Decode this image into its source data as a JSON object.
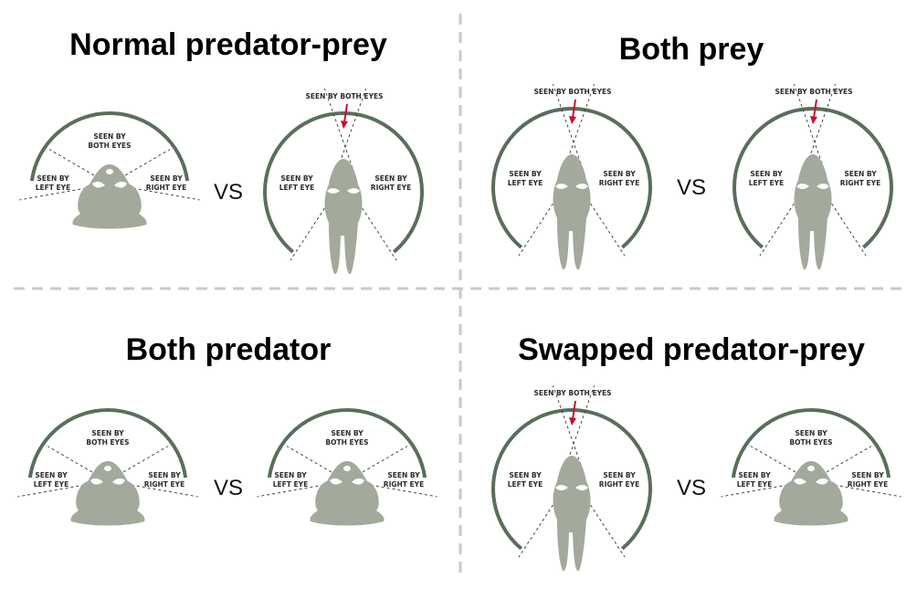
{
  "panels": [
    {
      "title": "Normal predator-prey",
      "vs": "VS",
      "left": {
        "kind": "predator",
        "labels": {
          "both": [
            "SEEN BY",
            "BOTH EYES"
          ],
          "left": [
            "SEEN BY",
            "LEFT EYE"
          ],
          "right": [
            "SEEN BY",
            "RIGHT EYE"
          ]
        }
      },
      "right": {
        "kind": "prey",
        "labels": {
          "both": [
            "SEEN BY BOTH EYES"
          ],
          "left": [
            "SEEN BY",
            "LEFT EYE"
          ],
          "right": [
            "SEEN BY",
            "RIGHT EYE"
          ]
        }
      }
    },
    {
      "title": "Both prey",
      "vs": "VS",
      "left": {
        "kind": "prey",
        "labels": {
          "both": [
            "SEEN BY BOTH EYES"
          ],
          "left": [
            "SEEN BY",
            "LEFT EYE"
          ],
          "right": [
            "SEEN BY",
            "RIGHT EYE"
          ]
        }
      },
      "right": {
        "kind": "prey",
        "labels": {
          "both": [
            "SEEN BY BOTH EYES"
          ],
          "left": [
            "SEEN BY",
            "LEFT EYE"
          ],
          "right": [
            "SEEN BY",
            "RIGHT EYE"
          ]
        }
      }
    },
    {
      "title": "Both predator",
      "vs": "VS",
      "left": {
        "kind": "predator",
        "labels": {
          "both": [
            "SEEN BY",
            "BOTH EYES"
          ],
          "left": [
            "SEEN BY",
            "LEFT EYE"
          ],
          "right": [
            "SEEN BY",
            "RIGHT EYE"
          ]
        }
      },
      "right": {
        "kind": "predator",
        "labels": {
          "both": [
            "SEEN BY",
            "BOTH EYES"
          ],
          "left": [
            "SEEN BY",
            "LEFT EYE"
          ],
          "right": [
            "SEEN BY",
            "RIGHT EYE"
          ]
        }
      }
    },
    {
      "title": "Swapped predator-prey",
      "vs": "VS",
      "left": {
        "kind": "prey",
        "labels": {
          "both": [
            "SEEN BY BOTH EYES"
          ],
          "left": [
            "SEEN BY",
            "LEFT EYE"
          ],
          "right": [
            "SEEN BY",
            "RIGHT EYE"
          ]
        }
      },
      "right": {
        "kind": "predator",
        "labels": {
          "both": [
            "SEEN BY",
            "BOTH EYES"
          ],
          "left": [
            "SEEN BY",
            "LEFT EYE"
          ],
          "right": [
            "SEEN BY",
            "RIGHT EYE"
          ]
        }
      }
    }
  ],
  "colors": {
    "arc": "#5a6e5c",
    "head": "#a3a99b",
    "arrow": "#c8102e",
    "divider": "#c9c9c9"
  }
}
